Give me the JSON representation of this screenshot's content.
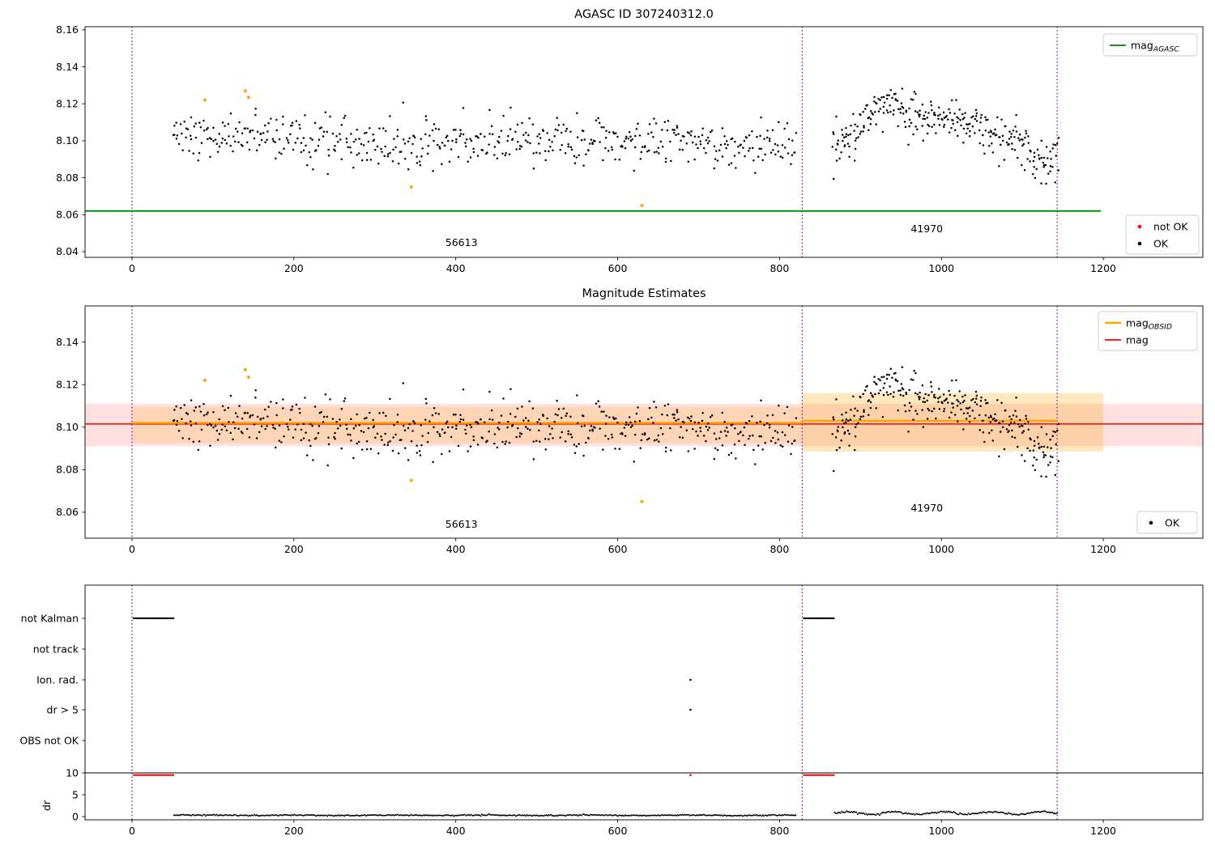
{
  "chart_data": [
    {
      "id": "agasc-mag-plot",
      "type": "scatter",
      "title": "AGASC ID 307240312.0",
      "xlim": [
        -58,
        1323
      ],
      "ylim": [
        8.0369,
        8.1617
      ],
      "xticks": [
        0,
        200,
        400,
        600,
        800,
        1000,
        1200
      ],
      "yticks": [
        8.04,
        8.06,
        8.08,
        8.1,
        8.12,
        8.14,
        8.16
      ],
      "mag_agasc_line": {
        "y": 8.062,
        "x0": -58,
        "x1": 1197,
        "color": "#008000"
      },
      "vlines": {
        "x": [
          0,
          828,
          1143
        ],
        "color": "#800080"
      },
      "annotations": [
        {
          "text": "56613",
          "x": 407,
          "y": 8.043
        },
        {
          "text": "41970",
          "x": 982,
          "y": 8.0505
        }
      ],
      "legends": {
        "top_right": [
          {
            "sample": "line",
            "color": "#008000",
            "label": "mag",
            "sub": "AGASC"
          }
        ],
        "bottom_right": [
          {
            "sample": "dot",
            "color": "#ff0000",
            "label": "not OK"
          },
          {
            "sample": "dot",
            "color": "#000000",
            "label": "OK"
          }
        ]
      }
    },
    {
      "id": "magnitude-estimates-plot",
      "type": "scatter",
      "title": "Magnitude Estimates",
      "xlim": [
        -58,
        1323
      ],
      "ylim": [
        8.0478,
        8.157
      ],
      "xticks": [
        0,
        200,
        400,
        600,
        800,
        1000,
        1200
      ],
      "yticks": [
        8.06,
        8.08,
        8.1,
        8.12,
        8.14
      ],
      "bands": [
        {
          "x0": -58,
          "x1": 1323,
          "y0": 8.091,
          "y1": 8.111,
          "color": "#ff0000",
          "opacity": 0.12
        },
        {
          "x0": 0,
          "x1": 828,
          "y0": 8.0925,
          "y1": 8.1095,
          "color": "#ffa500",
          "opacity": 0.18
        },
        {
          "x0": 828,
          "x1": 1200,
          "y0": 8.0885,
          "y1": 8.116,
          "color": "#ffa500",
          "opacity": 0.25
        }
      ],
      "mag_line": {
        "y": 8.1015,
        "x0": -58,
        "x1": 1323,
        "color": "#ff0000"
      },
      "mag_obsid_segments": [
        {
          "x0": 0,
          "x1": 828,
          "y": 8.102
        },
        {
          "x0": 828,
          "x1": 1143,
          "y": 8.103
        }
      ],
      "vlines": {
        "x": [
          0,
          828,
          1143
        ],
        "color": "#800080"
      },
      "annotations": [
        {
          "text": "56613",
          "x": 407,
          "y": 8.0527
        },
        {
          "text": "41970",
          "x": 982,
          "y": 8.0604
        }
      ],
      "legends": {
        "top_right": [
          {
            "sample": "line",
            "color": "#ffa500",
            "label": "mag",
            "sub": "OBSID",
            "lw": 2.4
          },
          {
            "sample": "line",
            "color": "#ff0000",
            "label": "mag"
          }
        ],
        "bottom_right": [
          {
            "sample": "dot",
            "color": "#000000",
            "label": "OK"
          }
        ]
      }
    },
    {
      "id": "flags-plot",
      "type": "scatter",
      "categories": [
        "not Kalman",
        "not track",
        "Ion. rad.",
        "dr > 5",
        "OBS not OK"
      ],
      "dr_ticks": [
        10,
        5,
        0
      ],
      "dr_label": "dr",
      "xticks": [
        0,
        200,
        400,
        600,
        800,
        1000,
        1200
      ],
      "hline": {
        "y": 10,
        "color": "#000000"
      },
      "vlines": {
        "x": [
          0,
          828,
          1143
        ],
        "color": "#800080"
      },
      "flag_runs": {
        "not_kalman": [
          [
            2,
            52
          ],
          [
            830,
            868
          ]
        ]
      },
      "flag_points": {
        "ion_rad": [
          690
        ],
        "dr_gt5": [
          690
        ]
      },
      "dr_sat_runs": [
        [
          2,
          52
        ],
        [
          830,
          868
        ]
      ],
      "dr_sat_points": [
        690
      ],
      "dr_sat_value": 9.5
    }
  ],
  "scatter_spec": {
    "seed": 307240312,
    "segments": [
      {
        "x0": 50,
        "x1": 820,
        "n": 540,
        "noise": 0.0068,
        "anchors": [
          [
            50,
            8.103
          ],
          [
            150,
            8.103
          ],
          [
            300,
            8.099
          ],
          [
            450,
            8.1
          ],
          [
            600,
            8.1005
          ],
          [
            820,
            8.0975
          ]
        ]
      },
      {
        "x0": 865,
        "x1": 1145,
        "n": 300,
        "noise": 0.006,
        "anchors": [
          [
            865,
            8.094
          ],
          [
            890,
            8.104
          ],
          [
            915,
            8.116
          ],
          [
            935,
            8.12
          ],
          [
            975,
            8.112
          ],
          [
            1010,
            8.113
          ],
          [
            1050,
            8.104
          ],
          [
            1090,
            8.1
          ],
          [
            1125,
            8.088
          ],
          [
            1145,
            8.091
          ]
        ]
      }
    ],
    "orange_points": [
      [
        90,
        8.122
      ],
      [
        140,
        8.127
      ],
      [
        144,
        8.1235
      ],
      [
        345,
        8.075
      ],
      [
        630,
        8.065
      ]
    ],
    "dr_trace": [
      {
        "x0": 52,
        "x1": 820,
        "n": 512,
        "base": 0.3,
        "amp": 0.05,
        "wl": 120,
        "noise": 0.07
      },
      {
        "x0": 868,
        "x1": 1143,
        "n": 184,
        "base": 0.8,
        "amp": 0.3,
        "wl": 60,
        "noise": 0.12
      }
    ]
  }
}
